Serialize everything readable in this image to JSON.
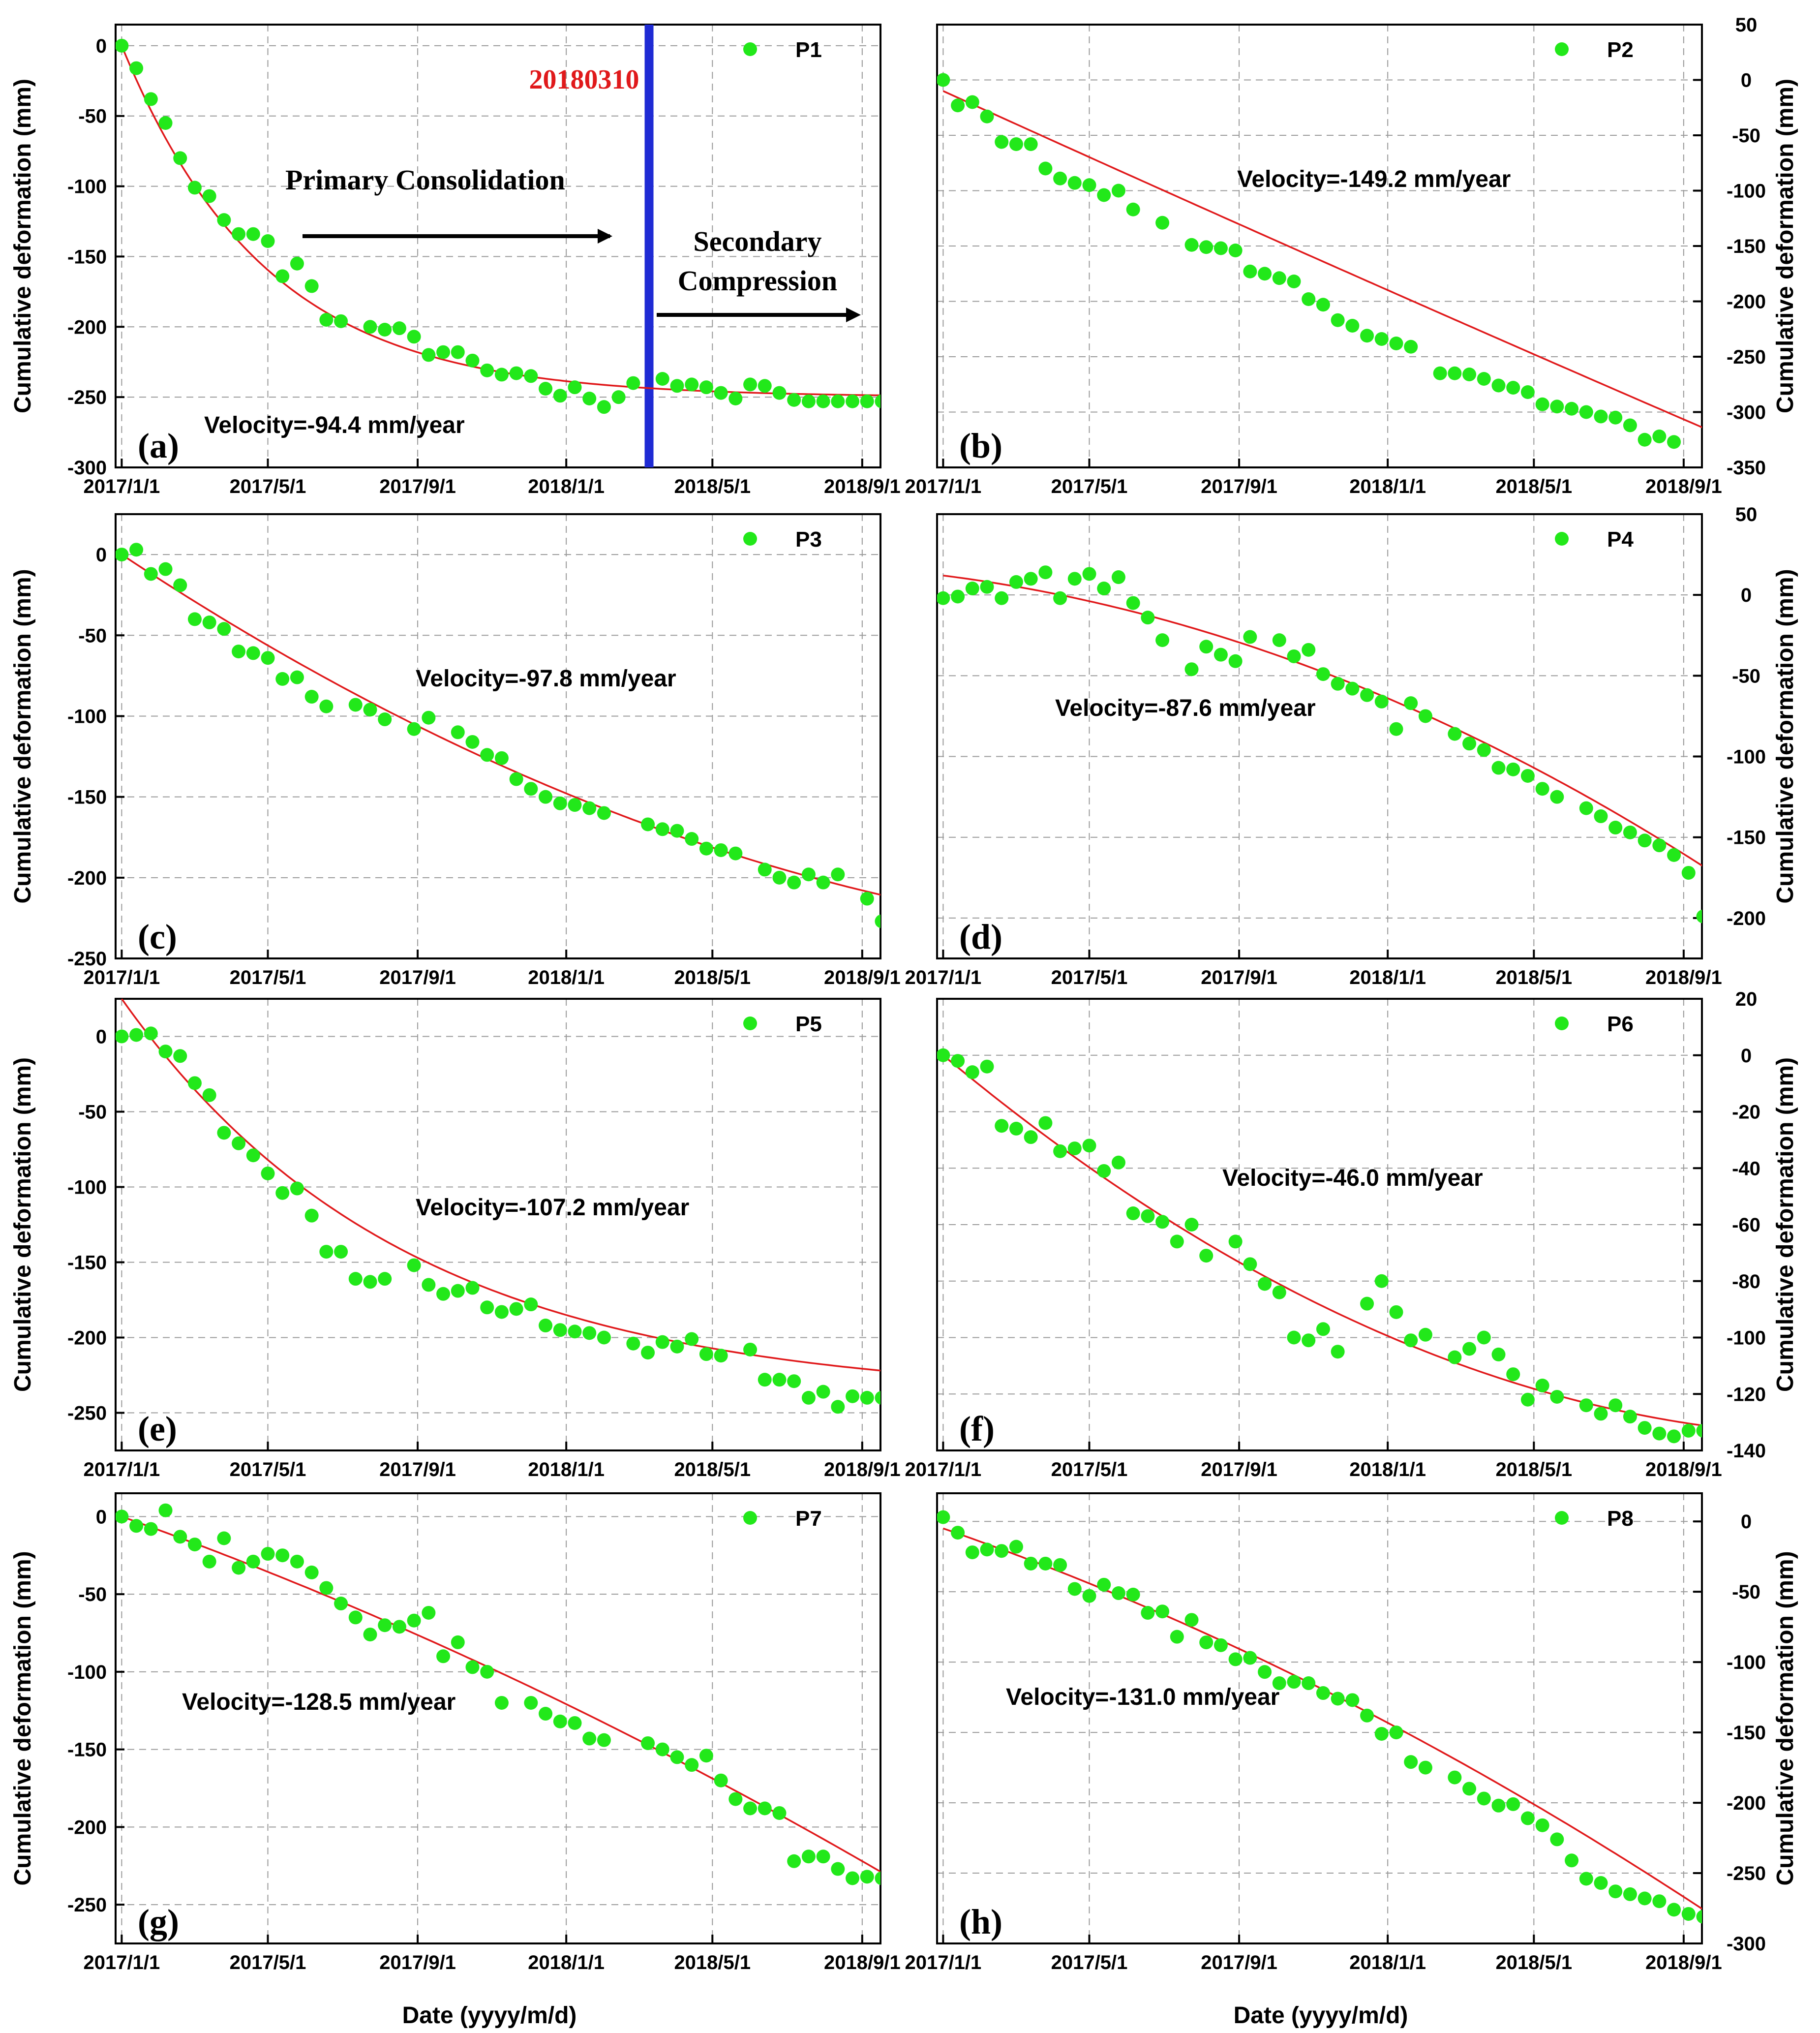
{
  "figure": {
    "x_axis_title": "Date (yyyy/m/d)",
    "y_axis_title": "Cumulative deformation (mm)",
    "x_tick_labels": [
      "2017/1/1",
      "2017/5/1",
      "2017/9/1",
      "2018/1/1",
      "2018/5/1",
      "2018/9/1"
    ],
    "colors": {
      "points": "#22e81a",
      "fit": "#e0191b",
      "event_line": "#1f2bd4",
      "event_label": "#e0191b",
      "grid": "#9a9a9a"
    }
  },
  "chart_data": [
    {
      "type": "scatter",
      "panel": "(a)",
      "legend": "P1",
      "velocity": "Velocity=-94.4 mm/year",
      "y_axis_side": "left",
      "ylim": [
        -300,
        15
      ],
      "yticks": [
        0,
        -50,
        -100,
        -150,
        -200,
        -250,
        -300
      ],
      "xlim": [
        -5,
        623
      ],
      "event": {
        "x": 433,
        "label": "20180310"
      },
      "annotations": [
        "Primary Consolidation",
        "Secondary",
        "Compression"
      ],
      "x": [
        0,
        12,
        24,
        36,
        48,
        60,
        72,
        84,
        96,
        108,
        120,
        132,
        144,
        156,
        168,
        180,
        204,
        216,
        228,
        240,
        252,
        264,
        276,
        288,
        300,
        312,
        324,
        336,
        348,
        360,
        372,
        384,
        396,
        408,
        420,
        444,
        456,
        468,
        480,
        492,
        504,
        516,
        528,
        540,
        552,
        564,
        576,
        588,
        600,
        612,
        624
      ],
      "y": [
        0,
        -16,
        -38,
        -55,
        -80,
        -101,
        -107,
        -124,
        -134,
        -134,
        -139,
        -164,
        -155,
        -171,
        -195,
        -196,
        -200,
        -202,
        -201,
        -207,
        -220,
        -218,
        -218,
        -224,
        -231,
        -234,
        -233,
        -235,
        -244,
        -249,
        -243,
        -251,
        -257,
        -250,
        -240,
        -237,
        -242,
        -241,
        -243,
        -247,
        -251,
        -241,
        -242,
        -247,
        -252,
        -253,
        -253,
        -253,
        -253,
        -253,
        -253
      ],
      "fit": {
        "type": "exp",
        "a": -250,
        "b": 250,
        "tau": 118
      }
    },
    {
      "type": "scatter",
      "panel": "(b)",
      "legend": "P2",
      "velocity": "Velocity=-149.2 mm/year",
      "y_axis_side": "right",
      "ylim": [
        -350,
        50
      ],
      "yticks": [
        50,
        0,
        -50,
        -100,
        -150,
        -200,
        -250,
        -300,
        -350
      ],
      "xlim": [
        -5,
        623
      ],
      "x": [
        0,
        12,
        24,
        36,
        48,
        60,
        72,
        84,
        96,
        108,
        120,
        132,
        144,
        156,
        180,
        204,
        216,
        228,
        240,
        252,
        264,
        276,
        288,
        300,
        312,
        324,
        336,
        348,
        360,
        372,
        384,
        408,
        420,
        432,
        444,
        456,
        468,
        480,
        492,
        504,
        516,
        528,
        540,
        552,
        564,
        576,
        588,
        600
      ],
      "y": [
        0,
        -23,
        -20,
        -33,
        -56,
        -58,
        -58,
        -80,
        -89,
        -93,
        -95,
        -104,
        -100,
        -117,
        -129,
        -149,
        -151,
        -152,
        -154,
        -173,
        -175,
        -179,
        -182,
        -198,
        -203,
        -217,
        -222,
        -231,
        -234,
        -238,
        -241,
        -265,
        -265,
        -266,
        -270,
        -276,
        -278,
        -282,
        -293,
        -295,
        -297,
        -300,
        -304,
        -305,
        -312,
        -325,
        -322,
        -327
      ],
      "fit": {
        "type": "poly",
        "c": [
          -10,
          -0.5,
          2e-05
        ]
      }
    },
    {
      "type": "scatter",
      "panel": "(c)",
      "legend": "P3",
      "velocity": "Velocity=-97.8 mm/year",
      "y_axis_side": "left",
      "ylim": [
        -250,
        25
      ],
      "yticks": [
        0,
        -50,
        -100,
        -150,
        -200,
        -250
      ],
      "xlim": [
        -5,
        623
      ],
      "x": [
        0,
        12,
        24,
        36,
        48,
        60,
        72,
        84,
        96,
        108,
        120,
        132,
        144,
        156,
        168,
        192,
        204,
        216,
        240,
        252,
        276,
        288,
        300,
        312,
        324,
        336,
        348,
        360,
        372,
        384,
        396,
        432,
        444,
        456,
        468,
        480,
        492,
        504,
        528,
        540,
        552,
        564,
        576,
        588,
        612,
        624
      ],
      "y": [
        0,
        3,
        -12,
        -9,
        -19,
        -40,
        -42,
        -46,
        -60,
        -61,
        -64,
        -77,
        -76,
        -88,
        -94,
        -93,
        -96,
        -102,
        -108,
        -101,
        -110,
        -116,
        -124,
        -126,
        -139,
        -145,
        -150,
        -154,
        -155,
        -157,
        -160,
        -167,
        -170,
        -171,
        -176,
        -182,
        -183,
        -185,
        -195,
        -200,
        -203,
        -198,
        -203,
        -198,
        -213,
        -227
      ],
      "fit": {
        "type": "poly",
        "c": [
          0,
          -0.5,
          0.00026
        ]
      }
    },
    {
      "type": "scatter",
      "panel": "(d)",
      "legend": "P4",
      "velocity": "Velocity=-87.6 mm/year",
      "y_axis_side": "right",
      "ylim": [
        -225,
        50
      ],
      "yticks": [
        50,
        0,
        -50,
        -100,
        -150,
        -200
      ],
      "xlim": [
        -5,
        623
      ],
      "x": [
        0,
        12,
        24,
        36,
        48,
        60,
        72,
        84,
        96,
        108,
        120,
        132,
        144,
        156,
        168,
        180,
        204,
        216,
        228,
        240,
        252,
        276,
        288,
        300,
        312,
        324,
        336,
        348,
        360,
        372,
        384,
        396,
        420,
        432,
        444,
        456,
        468,
        480,
        492,
        504,
        528,
        540,
        552,
        564,
        576,
        588,
        600,
        612,
        624
      ],
      "y": [
        -2,
        -1,
        4,
        5,
        -2,
        8,
        10,
        14,
        -2,
        10,
        13,
        4,
        11,
        -5,
        -14,
        -28,
        -46,
        -32,
        -37,
        -41,
        -26,
        -28,
        -38,
        -34,
        -49,
        -55,
        -58,
        -62,
        -66,
        -83,
        -67,
        -75,
        -86,
        -92,
        -96,
        -107,
        -108,
        -112,
        -120,
        -125,
        -132,
        -137,
        -144,
        -147,
        -152,
        -155,
        -161,
        -172,
        -199
      ],
      "fit": {
        "type": "poly",
        "c": [
          12,
          -0.095,
          -0.00031
        ]
      }
    },
    {
      "type": "scatter",
      "panel": "(e)",
      "legend": "P5",
      "velocity": "Velocity=-107.2 mm/year",
      "y_axis_side": "left",
      "ylim": [
        -275,
        25
      ],
      "yticks": [
        0,
        -50,
        -100,
        -150,
        -200,
        -250
      ],
      "xlim": [
        -5,
        623
      ],
      "x": [
        0,
        12,
        24,
        36,
        48,
        60,
        72,
        84,
        96,
        108,
        120,
        132,
        144,
        156,
        168,
        180,
        192,
        204,
        216,
        240,
        252,
        264,
        276,
        288,
        300,
        312,
        324,
        336,
        348,
        360,
        372,
        384,
        396,
        420,
        432,
        444,
        456,
        468,
        480,
        492,
        516,
        528,
        540,
        552,
        564,
        576,
        588,
        600,
        612,
        624
      ],
      "y": [
        0,
        1,
        2,
        -10,
        -13,
        -31,
        -39,
        -64,
        -71,
        -79,
        -91,
        -104,
        -101,
        -119,
        -143,
        -143,
        -161,
        -163,
        -161,
        -152,
        -165,
        -171,
        -169,
        -167,
        -180,
        -183,
        -181,
        -178,
        -192,
        -195,
        -196,
        -197,
        -200,
        -204,
        -210,
        -203,
        -206,
        -201,
        -211,
        -212,
        -208,
        -228,
        -228,
        -229,
        -240,
        -236,
        -246,
        -239,
        -240,
        -240
      ],
      "fit": {
        "type": "exp",
        "a": -240,
        "b": 265,
        "tau": 232
      }
    },
    {
      "type": "scatter",
      "panel": "(f)",
      "legend": "P6",
      "velocity": "Velocity=-46.0 mm/year",
      "y_axis_side": "right",
      "ylim": [
        -140,
        20
      ],
      "yticks": [
        20,
        0,
        -20,
        -40,
        -60,
        -80,
        -100,
        -120,
        -140
      ],
      "xlim": [
        -5,
        623
      ],
      "x": [
        0,
        12,
        24,
        36,
        48,
        60,
        72,
        84,
        96,
        108,
        120,
        132,
        144,
        156,
        168,
        180,
        192,
        204,
        216,
        240,
        252,
        264,
        276,
        288,
        300,
        312,
        324,
        348,
        360,
        372,
        384,
        396,
        420,
        432,
        444,
        456,
        468,
        480,
        492,
        504,
        528,
        540,
        552,
        564,
        576,
        588,
        600,
        612,
        624
      ],
      "y": [
        0,
        -2,
        -6,
        -4,
        -25,
        -26,
        -29,
        -24,
        -34,
        -33,
        -32,
        -41,
        -38,
        -56,
        -57,
        -59,
        -66,
        -60,
        -71,
        -66,
        -74,
        -81,
        -84,
        -100,
        -101,
        -97,
        -105,
        -88,
        -80,
        -91,
        -101,
        -99,
        -107,
        -104,
        -100,
        -106,
        -113,
        -122,
        -117,
        -121,
        -124,
        -127,
        -124,
        -128,
        -132,
        -134,
        -135,
        -133,
        -133
      ],
      "fit": {
        "type": "poly",
        "c": [
          0,
          -0.36,
          0.00024
        ]
      }
    },
    {
      "type": "scatter",
      "panel": "(g)",
      "legend": "P7",
      "velocity": "Velocity=-128.5 mm/year",
      "y_axis_side": "left",
      "ylim": [
        -275,
        15
      ],
      "yticks": [
        0,
        -50,
        -100,
        -150,
        -200,
        -250
      ],
      "xlim": [
        -5,
        623
      ],
      "x": [
        0,
        12,
        24,
        36,
        48,
        60,
        72,
        84,
        96,
        108,
        120,
        132,
        144,
        156,
        168,
        180,
        192,
        204,
        216,
        228,
        240,
        252,
        264,
        276,
        288,
        300,
        312,
        336,
        348,
        360,
        372,
        384,
        396,
        432,
        444,
        456,
        468,
        480,
        492,
        504,
        516,
        528,
        540,
        552,
        564,
        576,
        588,
        600,
        612,
        624
      ],
      "y": [
        0,
        -6,
        -8,
        4,
        -13,
        -18,
        -29,
        -14,
        -33,
        -29,
        -24,
        -25,
        -29,
        -36,
        -46,
        -56,
        -65,
        -76,
        -70,
        -71,
        -67,
        -62,
        -90,
        -81,
        -97,
        -100,
        -120,
        -120,
        -127,
        -132,
        -133,
        -143,
        -144,
        -146,
        -150,
        -155,
        -160,
        -154,
        -170,
        -182,
        -188,
        -188,
        -191,
        -222,
        -219,
        -219,
        -227,
        -233,
        -232,
        -233
      ],
      "fit": {
        "type": "poly",
        "c": [
          0,
          -0.28,
          -0.00014
        ]
      }
    },
    {
      "type": "scatter",
      "panel": "(h)",
      "legend": "P8",
      "velocity": "Velocity=-131.0 mm/year",
      "y_axis_side": "right",
      "ylim": [
        -300,
        20
      ],
      "yticks": [
        0,
        -50,
        -100,
        -150,
        -200,
        -250,
        -300
      ],
      "xlim": [
        -5,
        623
      ],
      "x": [
        0,
        12,
        24,
        36,
        48,
        60,
        72,
        84,
        96,
        108,
        120,
        132,
        144,
        156,
        168,
        180,
        192,
        204,
        216,
        228,
        240,
        252,
        264,
        276,
        288,
        300,
        312,
        324,
        336,
        348,
        360,
        372,
        384,
        396,
        420,
        432,
        444,
        456,
        468,
        480,
        492,
        504,
        516,
        528,
        540,
        552,
        564,
        576,
        588,
        600,
        612,
        624
      ],
      "y": [
        3,
        -8,
        -22,
        -20,
        -21,
        -18,
        -30,
        -30,
        -31,
        -48,
        -53,
        -45,
        -51,
        -52,
        -65,
        -64,
        -82,
        -70,
        -86,
        -88,
        -98,
        -97,
        -107,
        -115,
        -114,
        -115,
        -122,
        -126,
        -127,
        -138,
        -151,
        -150,
        -171,
        -175,
        -182,
        -190,
        -197,
        -202,
        -201,
        -211,
        -216,
        -226,
        -241,
        -254,
        -257,
        -263,
        -265,
        -268,
        -270,
        -276,
        -279,
        -281
      ],
      "fit": {
        "type": "poly",
        "c": [
          -5,
          -0.3,
          -0.000215
        ]
      }
    }
  ]
}
